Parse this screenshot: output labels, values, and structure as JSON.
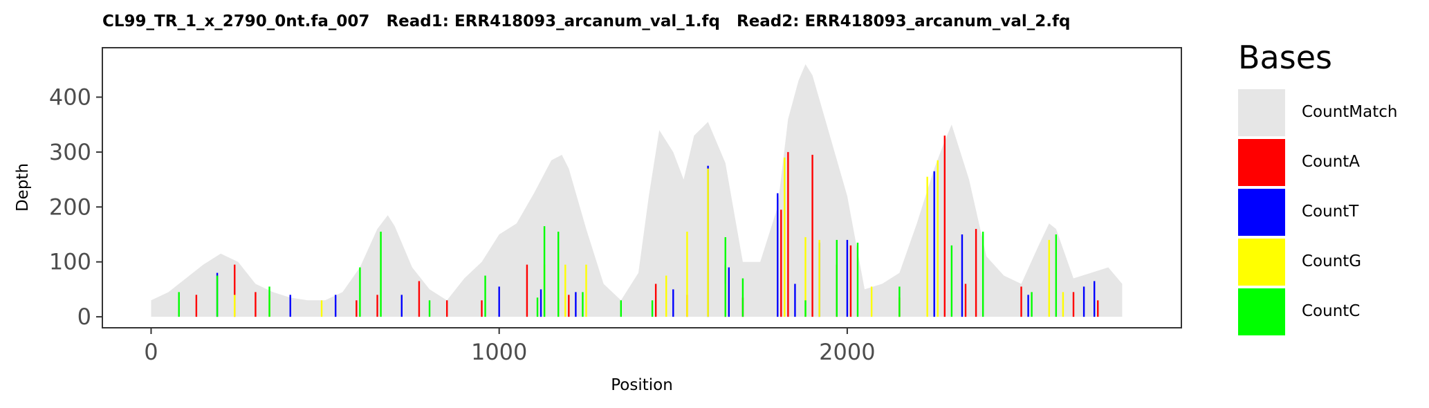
{
  "chart_data": {
    "type": "area",
    "title": "CL99_TR_1_x_2790_0nt.fa_007   Read1: ERR418093_arcanum_val_1.fq   Read2: ERR418093_arcanum_val_2.fq",
    "xlabel": "Position",
    "ylabel": "Depth",
    "xlim": [
      -140,
      2960
    ],
    "ylim": [
      -20,
      490
    ],
    "x_ticks": [
      0,
      1000,
      2000
    ],
    "y_ticks": [
      0,
      100,
      200,
      300,
      400
    ],
    "grid": false,
    "legend": {
      "title": "Bases",
      "placement": "right",
      "entries": [
        {
          "label": "CountMatch",
          "color": "#e6e6e6"
        },
        {
          "label": "CountA",
          "color": "#ff0000"
        },
        {
          "label": "CountT",
          "color": "#0000ff"
        },
        {
          "label": "CountG",
          "color": "#ffff00"
        },
        {
          "label": "CountC",
          "color": "#00ff00"
        }
      ]
    },
    "series": [
      {
        "name": "CountMatch",
        "color": "#e6e6e6",
        "x": [
          0,
          50,
          100,
          150,
          200,
          250,
          300,
          350,
          400,
          450,
          500,
          550,
          600,
          650,
          680,
          700,
          750,
          800,
          850,
          900,
          950,
          1000,
          1050,
          1100,
          1150,
          1180,
          1200,
          1250,
          1300,
          1350,
          1400,
          1430,
          1460,
          1500,
          1530,
          1560,
          1600,
          1650,
          1700,
          1750,
          1800,
          1830,
          1860,
          1880,
          1900,
          1950,
          2000,
          2050,
          2100,
          2150,
          2200,
          2250,
          2280,
          2300,
          2350,
          2400,
          2450,
          2500,
          2550,
          2580,
          2600,
          2650,
          2700,
          2750,
          2790
        ],
        "values": [
          30,
          45,
          70,
          95,
          115,
          100,
          60,
          45,
          35,
          30,
          30,
          45,
          90,
          160,
          185,
          165,
          90,
          50,
          30,
          70,
          100,
          150,
          170,
          225,
          285,
          295,
          270,
          160,
          60,
          30,
          80,
          220,
          340,
          300,
          250,
          330,
          355,
          280,
          100,
          100,
          200,
          360,
          430,
          460,
          440,
          330,
          220,
          50,
          60,
          80,
          170,
          270,
          320,
          350,
          250,
          110,
          75,
          60,
          130,
          170,
          160,
          70,
          80,
          90,
          60
        ]
      },
      {
        "name": "CountA",
        "color": "#ff0000",
        "x": [
          130,
          240,
          300,
          590,
          650,
          770,
          850,
          950,
          1080,
          1200,
          1450,
          1540,
          1650,
          1700,
          1810,
          1830,
          1900,
          1970,
          2010,
          2150,
          2280,
          2340,
          2370,
          2500,
          2650,
          2720
        ],
        "values": [
          40,
          95,
          45,
          30,
          40,
          65,
          30,
          30,
          95,
          40,
          60,
          40,
          95,
          35,
          195,
          300,
          295,
          95,
          130,
          35,
          330,
          60,
          160,
          55,
          45,
          30
        ]
      },
      {
        "name": "CountT",
        "color": "#0000ff",
        "x": [
          190,
          400,
          530,
          720,
          1000,
          1120,
          1220,
          1500,
          1600,
          1660,
          1800,
          1850,
          1920,
          2000,
          2250,
          2330,
          2520,
          2680,
          2710
        ],
        "values": [
          80,
          40,
          40,
          40,
          55,
          50,
          45,
          50,
          275,
          90,
          225,
          60,
          135,
          140,
          265,
          150,
          40,
          55,
          65
        ]
      },
      {
        "name": "CountG",
        "color": "#ffff00",
        "x": [
          240,
          340,
          490,
          1130,
          1170,
          1190,
          1250,
          1480,
          1540,
          1600,
          1650,
          1820,
          1880,
          1920,
          2070,
          2150,
          2230,
          2260,
          2580,
          2620
        ],
        "values": [
          40,
          40,
          30,
          95,
          110,
          95,
          95,
          75,
          155,
          270,
          60,
          290,
          145,
          140,
          55,
          35,
          255,
          285,
          140,
          45
        ]
      },
      {
        "name": "CountC",
        "color": "#00ff00",
        "x": [
          80,
          190,
          340,
          600,
          660,
          800,
          960,
          1110,
          1130,
          1170,
          1240,
          1350,
          1440,
          1650,
          1700,
          1880,
          1970,
          2030,
          2150,
          2300,
          2390,
          2530,
          2600
        ],
        "values": [
          45,
          75,
          55,
          90,
          155,
          30,
          75,
          35,
          165,
          155,
          45,
          30,
          30,
          145,
          70,
          30,
          140,
          135,
          55,
          130,
          155,
          45,
          150
        ]
      }
    ]
  }
}
